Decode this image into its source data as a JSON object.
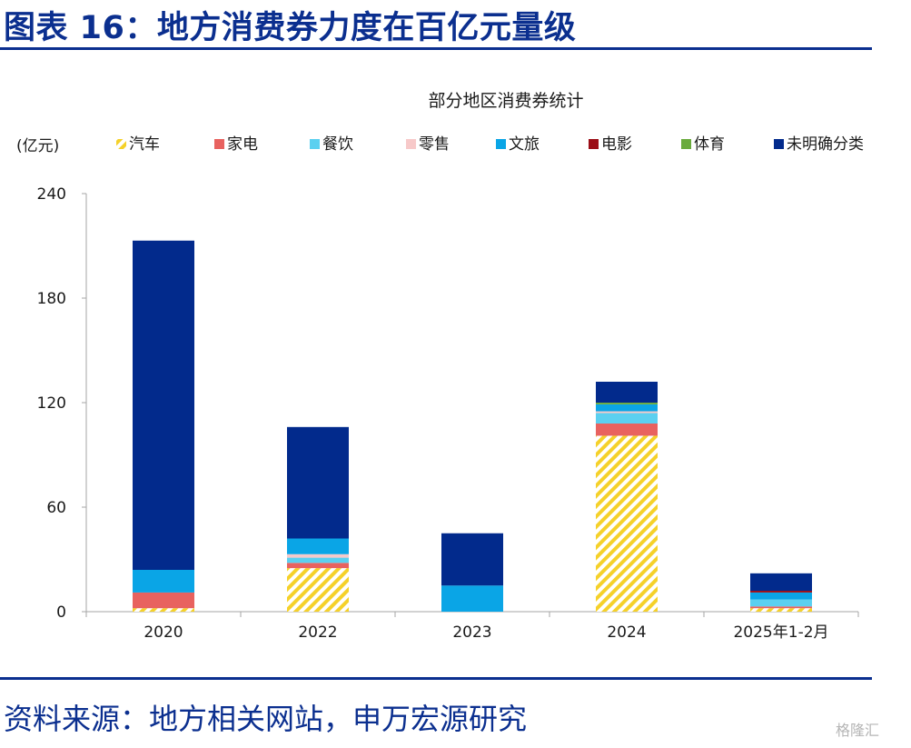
{
  "figure": {
    "title": "图表 16：地方消费券力度在百亿元量级",
    "source": "资料来源：地方相关网站，申万宏源研究",
    "watermark": "格隆汇"
  },
  "chart_data": {
    "type": "bar",
    "stacked": true,
    "title": "部分地区消费券统计",
    "unit_label": "(亿元)",
    "categories": [
      "2020",
      "2022",
      "2023",
      "2024",
      "2025年1-2月"
    ],
    "ylim": [
      0,
      240
    ],
    "yticks": [
      0,
      60,
      120,
      180,
      240
    ],
    "series": [
      {
        "name": "汽车",
        "color": "#f5d12a",
        "pattern": "hatch",
        "values": [
          2,
          25,
          0,
          101,
          2
        ]
      },
      {
        "name": "家电",
        "color": "#e8625f",
        "values": [
          9,
          3,
          0,
          7,
          1
        ]
      },
      {
        "name": "餐饮",
        "color": "#5bd0f0",
        "values": [
          0,
          3,
          0,
          6,
          4
        ]
      },
      {
        "name": "零售",
        "color": "#f7c9c9",
        "values": [
          0,
          2,
          0,
          1,
          0
        ]
      },
      {
        "name": "文旅",
        "color": "#0aa5e6",
        "values": [
          13,
          9,
          15,
          4,
          4
        ]
      },
      {
        "name": "电影",
        "color": "#9b0d16",
        "values": [
          0,
          0,
          0,
          0,
          1
        ]
      },
      {
        "name": "体育",
        "color": "#6aab3d",
        "values": [
          0,
          0,
          0,
          1,
          0
        ]
      },
      {
        "name": "未明确分类",
        "color": "#022a8c",
        "values": [
          189,
          64,
          30,
          12,
          10
        ]
      }
    ]
  }
}
